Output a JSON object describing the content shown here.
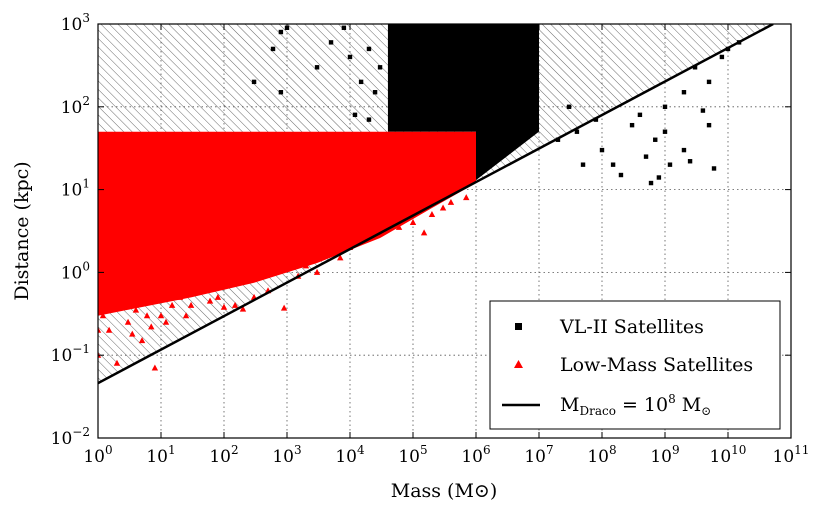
{
  "chart_data": {
    "type": "scatter",
    "title": "",
    "xlabel": "Mass (M⊙)",
    "ylabel": "Distance (kpc)",
    "xscale": "log",
    "yscale": "log",
    "xlim": [
      1,
      100000000000
    ],
    "ylim": [
      0.01,
      1000
    ],
    "grid": true,
    "legend_position": "lower-right",
    "x_ticks": [
      {
        "value": 1,
        "base": "10",
        "exp": "0"
      },
      {
        "value": 10,
        "base": "10",
        "exp": "1"
      },
      {
        "value": 100,
        "base": "10",
        "exp": "2"
      },
      {
        "value": 1000,
        "base": "10",
        "exp": "3"
      },
      {
        "value": 10000,
        "base": "10",
        "exp": "4"
      },
      {
        "value": 100000,
        "base": "10",
        "exp": "5"
      },
      {
        "value": 1000000,
        "base": "10",
        "exp": "6"
      },
      {
        "value": 10000000,
        "base": "10",
        "exp": "7"
      },
      {
        "value": 100000000,
        "base": "10",
        "exp": "8"
      },
      {
        "value": 1000000000,
        "base": "10",
        "exp": "9"
      },
      {
        "value": 10000000000,
        "base": "10",
        "exp": "10"
      },
      {
        "value": 100000000000,
        "base": "10",
        "exp": "11"
      }
    ],
    "y_ticks": [
      {
        "value": 0.01,
        "base": "10",
        "exp": "−2"
      },
      {
        "value": 0.1,
        "base": "10",
        "exp": "−1"
      },
      {
        "value": 1,
        "base": "10",
        "exp": "0"
      },
      {
        "value": 10,
        "base": "10",
        "exp": "1"
      },
      {
        "value": 100,
        "base": "10",
        "exp": "2"
      },
      {
        "value": 1000,
        "base": "10",
        "exp": "3"
      }
    ],
    "series": [
      {
        "name": "VL-II Satellites",
        "marker": "square",
        "color": "#000000",
        "dense_regions": [
          {
            "x_range": [
              40000,
              1000000
            ],
            "y_range": [
              50,
              1000
            ]
          },
          {
            "x_range": [
              1000000,
              10000000
            ],
            "y_range": [
              13,
              1000
            ]
          }
        ],
        "points": [
          [
            800,
            800
          ],
          [
            1000,
            900
          ],
          [
            600,
            500
          ],
          [
            5000,
            600
          ],
          [
            3000,
            300
          ],
          [
            20000,
            500
          ],
          [
            15000,
            200
          ],
          [
            12000,
            80
          ],
          [
            25000,
            150
          ],
          [
            10000,
            400
          ],
          [
            300,
            200
          ],
          [
            800,
            150
          ],
          [
            20000,
            70
          ],
          [
            30000,
            300
          ],
          [
            8000,
            900
          ],
          [
            20000000,
            40
          ],
          [
            50000000,
            20
          ],
          [
            100000000,
            30
          ],
          [
            200000000,
            15
          ],
          [
            300000000,
            60
          ],
          [
            500000000,
            25
          ],
          [
            1000000000,
            100
          ],
          [
            2000000000,
            150
          ],
          [
            3000000000,
            300
          ],
          [
            5000000000,
            200
          ],
          [
            10000000000,
            500
          ],
          [
            1000000000,
            50
          ],
          [
            2000000000,
            30
          ],
          [
            400000000,
            80
          ],
          [
            700000000,
            40
          ],
          [
            600000000,
            12
          ],
          [
            800000000,
            14
          ],
          [
            150000000,
            20
          ],
          [
            1200000000,
            20
          ],
          [
            30000000,
            100
          ],
          [
            80000000,
            70
          ],
          [
            40000000,
            50
          ],
          [
            5000000000,
            60
          ],
          [
            4000000000,
            90
          ],
          [
            8000000000,
            400
          ],
          [
            15000000000,
            600
          ],
          [
            6000000000,
            18
          ],
          [
            2500000000,
            22
          ]
        ]
      },
      {
        "name": "Low-Mass Satellites",
        "marker": "triangle",
        "color": "#ff0000",
        "dense_region": {
          "x_range": [
            1,
            1000000
          ],
          "y_range": [
            0.3,
            50
          ]
        },
        "points": [
          [
            1,
            0.1
          ],
          [
            1.5,
            0.2
          ],
          [
            2,
            0.08
          ],
          [
            1.2,
            0.3
          ],
          [
            3,
            0.25
          ],
          [
            5,
            0.15
          ],
          [
            8,
            0.07
          ],
          [
            2.5,
            0.4
          ],
          [
            4,
            0.35
          ],
          [
            10,
            0.3
          ],
          [
            15,
            0.4
          ],
          [
            20,
            0.5
          ],
          [
            30,
            0.4
          ],
          [
            50,
            0.6
          ],
          [
            80,
            0.5
          ],
          [
            100,
            0.38
          ],
          [
            150,
            0.4
          ],
          [
            200,
            0.36
          ],
          [
            300,
            0.5
          ],
          [
            500,
            0.6
          ],
          [
            900,
            0.37
          ],
          [
            1500,
            0.9
          ],
          [
            3000,
            1
          ],
          [
            7000,
            1.5
          ],
          [
            10000,
            2
          ],
          [
            20000,
            3
          ],
          [
            40000,
            4
          ],
          [
            80000,
            5
          ],
          [
            200000,
            5
          ],
          [
            400000,
            7
          ],
          [
            1,
            0.5
          ],
          [
            1.3,
            0.35
          ],
          [
            6,
            0.3
          ],
          [
            12,
            0.25
          ],
          [
            40,
            0.7
          ],
          [
            60,
            0.45
          ],
          [
            250,
            0.8
          ],
          [
            600,
            1
          ],
          [
            2000,
            1.2
          ],
          [
            5000,
            1.8
          ],
          [
            15000,
            2.5
          ],
          [
            60000,
            3.5
          ],
          [
            100000,
            4
          ],
          [
            150000,
            3
          ],
          [
            300000,
            6
          ],
          [
            700000,
            8
          ],
          [
            1,
            0.2
          ],
          [
            3.5,
            0.18
          ],
          [
            7,
            0.22
          ],
          [
            25,
            0.3
          ]
        ]
      },
      {
        "name": "M_Draco = 10^8 M⊙",
        "type": "line",
        "color": "#000000",
        "x": [
          1,
          52000000000
        ],
        "y": [
          0.046,
          1000
        ]
      }
    ],
    "hatched_region": {
      "description": "diagonal hatching between M_Draco line and the left/top axes",
      "line_x": [
        1,
        52000000000
      ],
      "line_y": [
        0.046,
        1000
      ]
    },
    "legend": [
      {
        "label": "VL-II Satellites",
        "marker": "square",
        "color": "#000000"
      },
      {
        "label": "Low-Mass Satellites",
        "marker": "triangle",
        "color": "#ff0000"
      },
      {
        "label_main": "M",
        "label_sub": "Draco",
        "label_eq": " = 10",
        "label_sup": "8",
        "label_unit": " M",
        "label_unit_sub": "⊙",
        "marker": "line",
        "color": "#000000"
      }
    ]
  }
}
